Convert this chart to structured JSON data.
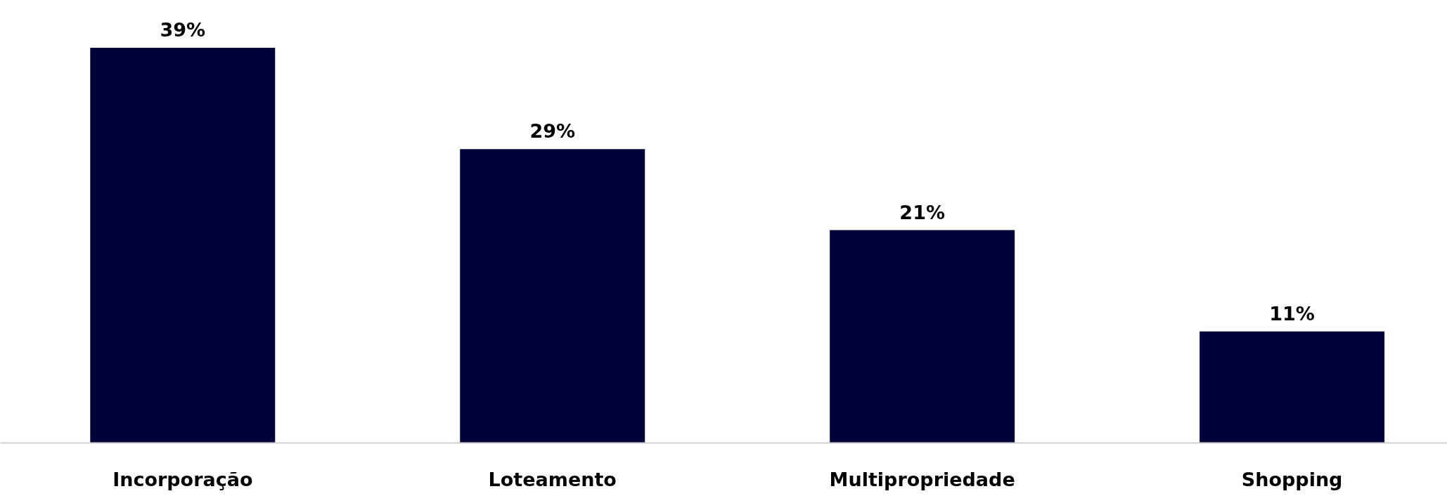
{
  "chart_data": {
    "type": "bar",
    "categories": [
      "Incorporação",
      "Loteamento",
      "Multipropriedade",
      "Shopping"
    ],
    "values": [
      39,
      29,
      21,
      11
    ],
    "value_labels": [
      "39%",
      "29%",
      "21%",
      "11%"
    ],
    "color": "#02023a",
    "grid": false
  }
}
